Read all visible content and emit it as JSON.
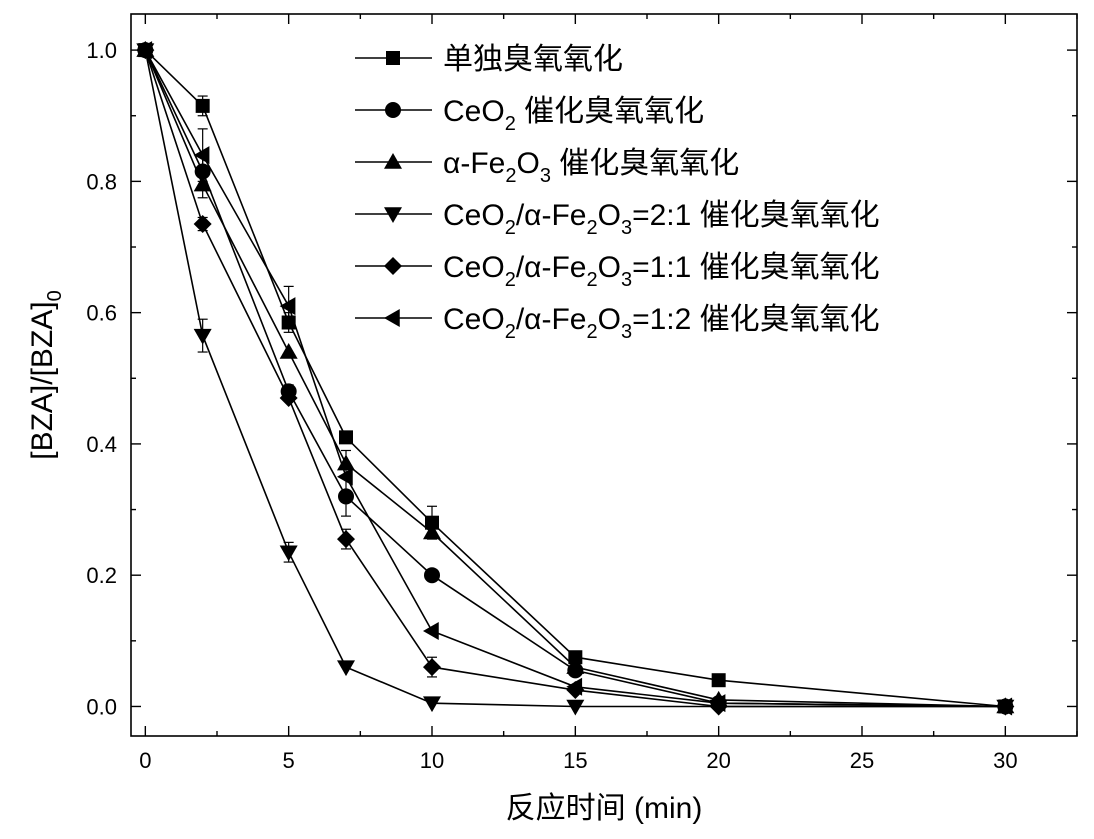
{
  "chart_data": {
    "type": "line",
    "xlabel": "反应时间 (min)",
    "ylabel": "[BZA]/[BZA]",
    "ylabel_subscript": "0",
    "xlim": [
      -0.5,
      32.5
    ],
    "ylim": [
      -0.045,
      1.055
    ],
    "x_ticks": [
      0,
      5,
      10,
      15,
      20,
      25,
      30
    ],
    "x_tick_labels": [
      "0",
      "5",
      "10",
      "15",
      "20",
      "25",
      "30"
    ],
    "y_ticks": [
      0.0,
      0.2,
      0.4,
      0.6,
      0.8,
      1.0
    ],
    "y_tick_labels": [
      "0.0",
      "0.2",
      "0.4",
      "0.6",
      "0.8",
      "1.0"
    ],
    "grid": false,
    "legend_position": "top-right",
    "series": [
      {
        "name": "单独臭氧氧化",
        "legend_parts": [
          {
            "t": "单独臭氧氧化"
          }
        ],
        "marker": "square",
        "x": [
          0,
          2,
          5,
          7,
          10,
          15,
          20,
          30
        ],
        "y": [
          1.0,
          0.915,
          0.585,
          0.41,
          0.28,
          0.075,
          0.04,
          0.0
        ],
        "err": [
          0,
          0.015,
          0.015,
          0,
          0.025,
          0.005,
          0,
          0
        ]
      },
      {
        "name": "CeO2 催化臭氧氧化",
        "legend_parts": [
          {
            "t": "CeO"
          },
          {
            "t": "2",
            "sub": true
          },
          {
            "t": " 催化臭氧氧化"
          }
        ],
        "marker": "circle",
        "x": [
          0,
          2,
          5,
          7,
          10,
          15,
          20,
          30
        ],
        "y": [
          1.0,
          0.815,
          0.48,
          0.32,
          0.2,
          0.055,
          0.005,
          0.0
        ],
        "err": [
          0,
          0.025,
          0.01,
          0.03,
          0,
          0.005,
          0,
          0
        ]
      },
      {
        "name": "α-Fe2O3 催化臭氧氧化",
        "legend_parts": [
          {
            "t": "α-Fe"
          },
          {
            "t": "2",
            "sub": true
          },
          {
            "t": "O"
          },
          {
            "t": "3",
            "sub": true
          },
          {
            "t": " 催化臭氧氧化"
          }
        ],
        "marker": "triangle-up",
        "x": [
          0,
          2,
          5,
          7,
          10,
          15,
          20,
          30
        ],
        "y": [
          1.0,
          0.795,
          0.54,
          0.37,
          0.265,
          0.06,
          0.01,
          0.0
        ],
        "err": [
          0,
          0.02,
          0,
          0.02,
          0,
          0,
          0,
          0
        ]
      },
      {
        "name": "CeO2/α-Fe2O3=2:1 催化臭氧氧化",
        "legend_parts": [
          {
            "t": "CeO"
          },
          {
            "t": "2",
            "sub": true
          },
          {
            "t": "/α-Fe"
          },
          {
            "t": "2",
            "sub": true
          },
          {
            "t": "O"
          },
          {
            "t": "3",
            "sub": true
          },
          {
            "t": "=2:1 催化臭氧氧化"
          }
        ],
        "marker": "triangle-down",
        "x": [
          0,
          2,
          5,
          7,
          10,
          15,
          20,
          30
        ],
        "y": [
          1.0,
          0.565,
          0.235,
          0.06,
          0.005,
          0.0,
          0.0,
          0.0
        ],
        "err": [
          0,
          0.025,
          0.015,
          0,
          0,
          0,
          0,
          0
        ]
      },
      {
        "name": "CeO2/α-Fe2O3=1:1 催化臭氧氧化",
        "legend_parts": [
          {
            "t": "CeO"
          },
          {
            "t": "2",
            "sub": true
          },
          {
            "t": "/α-Fe"
          },
          {
            "t": "2",
            "sub": true
          },
          {
            "t": "O"
          },
          {
            "t": "3",
            "sub": true
          },
          {
            "t": "=1:1 催化臭氧氧化"
          }
        ],
        "marker": "diamond",
        "x": [
          0,
          2,
          5,
          7,
          10,
          15,
          20,
          30
        ],
        "y": [
          1.0,
          0.735,
          0.47,
          0.255,
          0.06,
          0.025,
          0.0,
          0.0
        ],
        "err": [
          0,
          0.01,
          0,
          0.015,
          0.015,
          0,
          0,
          0
        ]
      },
      {
        "name": "CeO2/α-Fe2O3=1:2 催化臭氧氧化",
        "legend_parts": [
          {
            "t": "CeO"
          },
          {
            "t": "2",
            "sub": true
          },
          {
            "t": "/α-Fe"
          },
          {
            "t": "2",
            "sub": true
          },
          {
            "t": "O"
          },
          {
            "t": "3",
            "sub": true
          },
          {
            "t": "=1:2 催化臭氧氧化"
          }
        ],
        "marker": "triangle-left",
        "x": [
          0,
          2,
          5,
          7,
          10,
          15,
          20,
          30
        ],
        "y": [
          1.0,
          0.84,
          0.61,
          0.35,
          0.115,
          0.03,
          0.005,
          0.0
        ],
        "err": [
          0,
          0.04,
          0.03,
          0,
          0,
          0,
          0,
          0
        ]
      }
    ]
  }
}
